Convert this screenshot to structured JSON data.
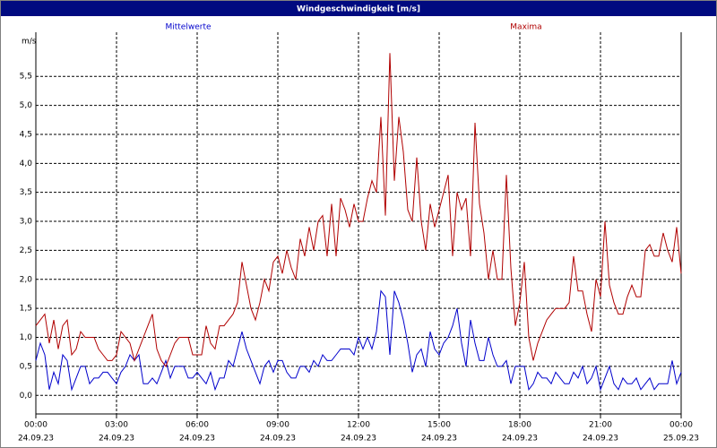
{
  "chart_data": {
    "type": "line",
    "title": "Windgeschwindigkeit [m/s]",
    "y_label": "m/s",
    "xlim": [
      0,
      1440
    ],
    "ylim": [
      -0.32,
      6.26
    ],
    "grid": true,
    "xticks": [
      {
        "value": 0,
        "label": "00:00"
      },
      {
        "value": 180,
        "label": "03:00"
      },
      {
        "value": 360,
        "label": "06:00"
      },
      {
        "value": 540,
        "label": "09:00"
      },
      {
        "value": 720,
        "label": "12:00"
      },
      {
        "value": 900,
        "label": "15:00"
      },
      {
        "value": 1080,
        "label": "18:00"
      },
      {
        "value": 1260,
        "label": "21:00"
      },
      {
        "value": 1440,
        "label": "00:00"
      }
    ],
    "xtick_dates": [
      "24.09.23",
      "24.09.23",
      "24.09.23",
      "24.09.23",
      "24.09.23",
      "24.09.23",
      "24.09.23",
      "24.09.23",
      "25.09.23"
    ],
    "yticks": [
      {
        "value": 0,
        "label": "0,0"
      },
      {
        "value": 0.5,
        "label": "0,5"
      },
      {
        "value": 1,
        "label": "1,0"
      },
      {
        "value": 1.5,
        "label": "1,5"
      },
      {
        "value": 2,
        "label": "2,0"
      },
      {
        "value": 2.5,
        "label": "2,5"
      },
      {
        "value": 3,
        "label": "3,0"
      },
      {
        "value": 3.5,
        "label": "3,5"
      },
      {
        "value": 4,
        "label": "4,0"
      },
      {
        "value": 4.5,
        "label": "4,5"
      },
      {
        "value": 5,
        "label": "5,0"
      },
      {
        "value": 5.5,
        "label": "5,5"
      }
    ],
    "x": [
      0,
      10,
      20,
      30,
      40,
      50,
      60,
      70,
      80,
      90,
      100,
      110,
      120,
      130,
      140,
      150,
      160,
      170,
      180,
      190,
      200,
      210,
      220,
      230,
      240,
      250,
      260,
      270,
      280,
      290,
      300,
      310,
      320,
      330,
      340,
      350,
      360,
      370,
      380,
      390,
      400,
      410,
      420,
      430,
      440,
      450,
      460,
      470,
      480,
      490,
      500,
      510,
      520,
      530,
      540,
      550,
      560,
      570,
      580,
      590,
      600,
      610,
      620,
      630,
      640,
      650,
      660,
      670,
      680,
      690,
      700,
      710,
      720,
      730,
      740,
      750,
      760,
      770,
      780,
      790,
      800,
      810,
      820,
      830,
      840,
      850,
      860,
      870,
      880,
      890,
      900,
      910,
      920,
      930,
      940,
      950,
      960,
      970,
      980,
      990,
      1000,
      1010,
      1020,
      1030,
      1040,
      1050,
      1060,
      1070,
      1080,
      1090,
      1100,
      1110,
      1120,
      1130,
      1140,
      1150,
      1160,
      1170,
      1180,
      1190,
      1200,
      1210,
      1220,
      1230,
      1240,
      1250,
      1260,
      1270,
      1280,
      1290,
      1300,
      1310,
      1320,
      1330,
      1340,
      1350,
      1360,
      1370,
      1380,
      1390,
      1400,
      1410,
      1420,
      1430,
      1440
    ],
    "series": [
      {
        "name": "Mittelwerte",
        "color": "#0000cc",
        "values": [
          0.6,
          0.9,
          0.7,
          0.1,
          0.4,
          0.2,
          0.7,
          0.6,
          0.1,
          0.3,
          0.5,
          0.5,
          0.2,
          0.3,
          0.3,
          0.4,
          0.4,
          0.3,
          0.2,
          0.4,
          0.5,
          0.7,
          0.6,
          0.7,
          0.2,
          0.2,
          0.3,
          0.2,
          0.4,
          0.6,
          0.3,
          0.5,
          0.5,
          0.5,
          0.3,
          0.3,
          0.4,
          0.3,
          0.2,
          0.4,
          0.1,
          0.3,
          0.3,
          0.6,
          0.5,
          0.8,
          1.1,
          0.8,
          0.6,
          0.4,
          0.2,
          0.5,
          0.6,
          0.4,
          0.6,
          0.6,
          0.4,
          0.3,
          0.3,
          0.5,
          0.5,
          0.4,
          0.6,
          0.5,
          0.7,
          0.6,
          0.6,
          0.7,
          0.8,
          0.8,
          0.8,
          0.7,
          1.0,
          0.8,
          1.0,
          0.8,
          1.1,
          1.8,
          1.7,
          0.7,
          1.8,
          1.6,
          1.3,
          0.9,
          0.4,
          0.7,
          0.8,
          0.5,
          1.1,
          0.8,
          0.7,
          0.9,
          1.0,
          1.2,
          1.5,
          0.9,
          0.5,
          1.3,
          0.9,
          0.6,
          0.6,
          1.0,
          0.7,
          0.5,
          0.5,
          0.6,
          0.2,
          0.5,
          0.5,
          0.5,
          0.1,
          0.2,
          0.4,
          0.3,
          0.3,
          0.2,
          0.4,
          0.3,
          0.2,
          0.2,
          0.4,
          0.3,
          0.5,
          0.2,
          0.3,
          0.5,
          0.1,
          0.3,
          0.5,
          0.2,
          0.1,
          0.3,
          0.2,
          0.2,
          0.3,
          0.1,
          0.2,
          0.3,
          0.1,
          0.2,
          0.2,
          0.2,
          0.6,
          0.2,
          0.4
        ]
      },
      {
        "name": "Maxima",
        "color": "#b00000",
        "values": [
          1.2,
          1.3,
          1.4,
          0.9,
          1.3,
          0.8,
          1.2,
          1.3,
          0.7,
          0.8,
          1.1,
          1.0,
          1.0,
          1.0,
          0.8,
          0.7,
          0.6,
          0.6,
          0.7,
          1.1,
          1.0,
          0.9,
          0.6,
          0.8,
          1.0,
          1.2,
          1.4,
          0.8,
          0.6,
          0.5,
          0.7,
          0.9,
          1.0,
          1.0,
          1.0,
          0.7,
          0.7,
          0.7,
          1.2,
          0.9,
          0.8,
          1.2,
          1.2,
          1.3,
          1.4,
          1.6,
          2.3,
          1.9,
          1.5,
          1.3,
          1.6,
          2.0,
          1.8,
          2.3,
          2.4,
          2.1,
          2.5,
          2.2,
          2.0,
          2.7,
          2.4,
          2.9,
          2.5,
          3.0,
          3.1,
          2.4,
          3.3,
          2.4,
          3.4,
          3.2,
          2.9,
          3.3,
          3.0,
          3.0,
          3.4,
          3.7,
          3.5,
          4.8,
          3.1,
          5.9,
          3.7,
          4.8,
          4.2,
          3.2,
          3.0,
          4.1,
          3.0,
          2.5,
          3.3,
          2.9,
          3.2,
          3.5,
          3.8,
          2.4,
          3.5,
          3.2,
          3.4,
          2.4,
          4.7,
          3.3,
          2.8,
          2.0,
          2.5,
          2.0,
          2.0,
          3.8,
          2.2,
          1.2,
          1.6,
          2.3,
          1.0,
          0.6,
          0.9,
          1.1,
          1.3,
          1.4,
          1.5,
          1.5,
          1.5,
          1.6,
          2.4,
          1.8,
          1.8,
          1.4,
          1.1,
          2.0,
          1.7,
          3.0,
          1.9,
          1.6,
          1.4,
          1.4,
          1.7,
          1.9,
          1.7,
          1.7,
          2.5,
          2.6,
          2.4,
          2.4,
          2.8,
          2.5,
          2.3,
          2.9,
          2.1
        ]
      }
    ]
  }
}
